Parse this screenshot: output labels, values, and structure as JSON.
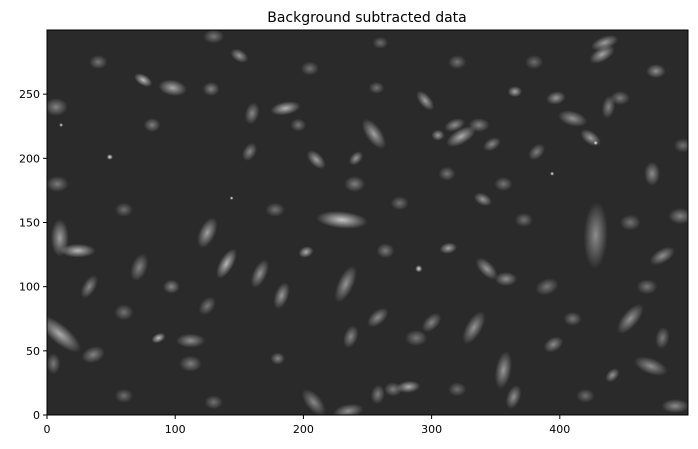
{
  "chart_data": {
    "type": "heatmap",
    "title": "Background subtracted data",
    "xlabel": "",
    "ylabel": "",
    "xlim": [
      0,
      500
    ],
    "ylim": [
      0,
      300
    ],
    "x_ticks": [
      0,
      100,
      200,
      300,
      400
    ],
    "y_ticks": [
      0,
      50,
      100,
      150,
      200,
      250
    ],
    "x_tick_labels": [
      "0",
      "100",
      "200",
      "300",
      "400"
    ],
    "y_tick_labels": [
      "0",
      "50",
      "100",
      "150",
      "200",
      "250"
    ],
    "colormap": "gray",
    "background_color": "#1f1f1f",
    "grid": false,
    "sources": [
      {
        "x": 144,
        "y": 169,
        "size": 1.8,
        "elongation": 1.0,
        "angle": 0,
        "brightness": 1.0
      },
      {
        "x": 394,
        "y": 188,
        "size": 2.0,
        "elongation": 1.0,
        "angle": 0,
        "brightness": 1.0
      },
      {
        "x": 49,
        "y": 201,
        "size": 2.8,
        "elongation": 1.1,
        "angle": 0,
        "brightness": 0.92
      },
      {
        "x": 11,
        "y": 226,
        "size": 2.0,
        "elongation": 1.0,
        "angle": 0,
        "brightness": 0.9
      },
      {
        "x": 428,
        "y": 212,
        "size": 2.1,
        "elongation": 1.0,
        "angle": 0,
        "brightness": 0.95
      },
      {
        "x": 290,
        "y": 114,
        "size": 3.6,
        "elongation": 1.0,
        "angle": 0,
        "brightness": 0.86
      },
      {
        "x": 87,
        "y": 60,
        "size": 4.6,
        "elongation": 1.6,
        "angle": 25,
        "brightness": 0.72
      },
      {
        "x": 24,
        "y": 128,
        "size": 6.8,
        "elongation": 2.6,
        "angle": 0,
        "brightness": 0.68
      },
      {
        "x": 186,
        "y": 239,
        "size": 6.6,
        "elongation": 2.3,
        "angle": 10,
        "brightness": 0.66
      },
      {
        "x": 230,
        "y": 152,
        "size": 8.6,
        "elongation": 3.0,
        "angle": -5,
        "brightness": 0.74
      },
      {
        "x": 282,
        "y": 22,
        "size": 6.0,
        "elongation": 2.0,
        "angle": 5,
        "brightness": 0.62
      },
      {
        "x": 323,
        "y": 217,
        "size": 7.5,
        "elongation": 2.2,
        "angle": 30,
        "brightness": 0.62
      },
      {
        "x": 140,
        "y": 118,
        "size": 7.0,
        "elongation": 2.4,
        "angle": 60,
        "brightness": 0.66
      },
      {
        "x": 75,
        "y": 261,
        "size": 5.5,
        "elongation": 1.8,
        "angle": -30,
        "brightness": 0.7
      },
      {
        "x": 98,
        "y": 255,
        "size": 8.0,
        "elongation": 1.8,
        "angle": -10,
        "brightness": 0.6
      },
      {
        "x": 10,
        "y": 63,
        "size": 9.5,
        "elongation": 2.8,
        "angle": -40,
        "brightness": 0.62
      },
      {
        "x": 10,
        "y": 138,
        "size": 9.0,
        "elongation": 2.1,
        "angle": 90,
        "brightness": 0.56
      },
      {
        "x": 125,
        "y": 142,
        "size": 8.2,
        "elongation": 2.0,
        "angle": 65,
        "brightness": 0.56
      },
      {
        "x": 202,
        "y": 127,
        "size": 5.5,
        "elongation": 1.4,
        "angle": 20,
        "brightness": 0.62
      },
      {
        "x": 210,
        "y": 199,
        "size": 6.5,
        "elongation": 1.8,
        "angle": -45,
        "brightness": 0.56
      },
      {
        "x": 241,
        "y": 200,
        "size": 5.5,
        "elongation": 1.5,
        "angle": 45,
        "brightness": 0.52
      },
      {
        "x": 255,
        "y": 219,
        "size": 8.0,
        "elongation": 2.2,
        "angle": -55,
        "brightness": 0.56
      },
      {
        "x": 295,
        "y": 245,
        "size": 6.0,
        "elongation": 2.0,
        "angle": -50,
        "brightness": 0.56
      },
      {
        "x": 305,
        "y": 218,
        "size": 5.5,
        "elongation": 1.2,
        "angle": 0,
        "brightness": 0.54
      },
      {
        "x": 410,
        "y": 231,
        "size": 7.5,
        "elongation": 2.0,
        "angle": -15,
        "brightness": 0.5
      },
      {
        "x": 365,
        "y": 252,
        "size": 5.5,
        "elongation": 1.3,
        "angle": 0,
        "brightness": 0.6
      },
      {
        "x": 397,
        "y": 247,
        "size": 6.5,
        "elongation": 1.5,
        "angle": 10,
        "brightness": 0.52
      },
      {
        "x": 433,
        "y": 281,
        "size": 7.0,
        "elongation": 2.0,
        "angle": 30,
        "brightness": 0.58
      },
      {
        "x": 435,
        "y": 290,
        "size": 6.5,
        "elongation": 2.2,
        "angle": 20,
        "brightness": 0.55
      },
      {
        "x": 424,
        "y": 216,
        "size": 6.5,
        "elongation": 1.8,
        "angle": -35,
        "brightness": 0.54
      },
      {
        "x": 475,
        "y": 268,
        "size": 7.0,
        "elongation": 1.4,
        "angle": 0,
        "brightness": 0.48
      },
      {
        "x": 472,
        "y": 188,
        "size": 8.0,
        "elongation": 1.5,
        "angle": 90,
        "brightness": 0.46
      },
      {
        "x": 340,
        "y": 168,
        "size": 6.0,
        "elongation": 1.6,
        "angle": -25,
        "brightness": 0.52
      },
      {
        "x": 313,
        "y": 130,
        "size": 5.5,
        "elongation": 1.6,
        "angle": 10,
        "brightness": 0.58
      },
      {
        "x": 343,
        "y": 114,
        "size": 7.0,
        "elongation": 2.0,
        "angle": -45,
        "brightness": 0.52
      },
      {
        "x": 358,
        "y": 106,
        "size": 7.0,
        "elongation": 1.6,
        "angle": 0,
        "brightness": 0.48
      },
      {
        "x": 333,
        "y": 68,
        "size": 8.0,
        "elongation": 2.3,
        "angle": 60,
        "brightness": 0.5
      },
      {
        "x": 356,
        "y": 35,
        "size": 8.0,
        "elongation": 2.4,
        "angle": 80,
        "brightness": 0.52
      },
      {
        "x": 364,
        "y": 14,
        "size": 7.0,
        "elongation": 1.8,
        "angle": 70,
        "brightness": 0.48
      },
      {
        "x": 428,
        "y": 140,
        "size": 12.0,
        "elongation": 2.8,
        "angle": 88,
        "brightness": 0.46
      },
      {
        "x": 395,
        "y": 55,
        "size": 7.0,
        "elongation": 1.5,
        "angle": 30,
        "brightness": 0.46
      },
      {
        "x": 455,
        "y": 75,
        "size": 8.0,
        "elongation": 2.3,
        "angle": 50,
        "brightness": 0.5
      },
      {
        "x": 471,
        "y": 38,
        "size": 8.0,
        "elongation": 2.2,
        "angle": -20,
        "brightness": 0.48
      },
      {
        "x": 441,
        "y": 31,
        "size": 5.5,
        "elongation": 1.5,
        "angle": 45,
        "brightness": 0.5
      },
      {
        "x": 480,
        "y": 124,
        "size": 7.0,
        "elongation": 2.0,
        "angle": 30,
        "brightness": 0.48
      },
      {
        "x": 494,
        "y": 155,
        "size": 8.0,
        "elongation": 1.5,
        "angle": 0,
        "brightness": 0.42
      },
      {
        "x": 490,
        "y": 7,
        "size": 7.0,
        "elongation": 2.0,
        "angle": 0,
        "brightness": 0.46
      },
      {
        "x": 237,
        "y": 61,
        "size": 7.0,
        "elongation": 1.7,
        "angle": 70,
        "brightness": 0.44
      },
      {
        "x": 258,
        "y": 76,
        "size": 7.0,
        "elongation": 1.8,
        "angle": 40,
        "brightness": 0.46
      },
      {
        "x": 233,
        "y": 102,
        "size": 8.0,
        "elongation": 2.5,
        "angle": 65,
        "brightness": 0.5
      },
      {
        "x": 183,
        "y": 93,
        "size": 7.0,
        "elongation": 2.0,
        "angle": 70,
        "brightness": 0.52
      },
      {
        "x": 166,
        "y": 110,
        "size": 7.0,
        "elongation": 2.2,
        "angle": 65,
        "brightness": 0.5
      },
      {
        "x": 112,
        "y": 58,
        "size": 7.0,
        "elongation": 2.1,
        "angle": 0,
        "brightness": 0.48
      },
      {
        "x": 180,
        "y": 44,
        "size": 6.0,
        "elongation": 1.2,
        "angle": 0,
        "brightness": 0.44
      },
      {
        "x": 112,
        "y": 40,
        "size": 8.0,
        "elongation": 1.4,
        "angle": 0,
        "brightness": 0.4
      },
      {
        "x": 36,
        "y": 47,
        "size": 8.0,
        "elongation": 1.5,
        "angle": 20,
        "brightness": 0.42
      },
      {
        "x": 150,
        "y": 280,
        "size": 6.0,
        "elongation": 1.6,
        "angle": -30,
        "brightness": 0.52
      },
      {
        "x": 128,
        "y": 254,
        "size": 7.0,
        "elongation": 1.2,
        "angle": 0,
        "brightness": 0.42
      },
      {
        "x": 160,
        "y": 235,
        "size": 7.0,
        "elongation": 1.6,
        "angle": 75,
        "brightness": 0.44
      },
      {
        "x": 158,
        "y": 205,
        "size": 6.5,
        "elongation": 1.5,
        "angle": 60,
        "brightness": 0.44
      },
      {
        "x": 82,
        "y": 226,
        "size": 7.0,
        "elongation": 1.2,
        "angle": 0,
        "brightness": 0.4
      },
      {
        "x": 7,
        "y": 240,
        "size": 9.0,
        "elongation": 1.3,
        "angle": 0,
        "brightness": 0.42
      },
      {
        "x": 8,
        "y": 180,
        "size": 8.0,
        "elongation": 1.4,
        "angle": 0,
        "brightness": 0.38
      },
      {
        "x": 97,
        "y": 100,
        "size": 7.0,
        "elongation": 1.2,
        "angle": 0,
        "brightness": 0.44
      },
      {
        "x": 72,
        "y": 115,
        "size": 8.0,
        "elongation": 1.8,
        "angle": 70,
        "brightness": 0.42
      },
      {
        "x": 270,
        "y": 20,
        "size": 7.0,
        "elongation": 1.3,
        "angle": 0,
        "brightness": 0.4
      },
      {
        "x": 208,
        "y": 10,
        "size": 8.0,
        "elongation": 2.0,
        "angle": -50,
        "brightness": 0.44
      },
      {
        "x": 235,
        "y": 3,
        "size": 7.0,
        "elongation": 2.2,
        "angle": 10,
        "brightness": 0.48
      },
      {
        "x": 258,
        "y": 16,
        "size": 7.0,
        "elongation": 1.4,
        "angle": 80,
        "brightness": 0.4
      },
      {
        "x": 318,
        "y": 226,
        "size": 6.0,
        "elongation": 1.8,
        "angle": 20,
        "brightness": 0.48
      },
      {
        "x": 337,
        "y": 226,
        "size": 7.0,
        "elongation": 1.5,
        "angle": 0,
        "brightness": 0.42
      },
      {
        "x": 347,
        "y": 211,
        "size": 6.0,
        "elongation": 1.6,
        "angle": 30,
        "brightness": 0.44
      },
      {
        "x": 382,
        "y": 205,
        "size": 6.5,
        "elongation": 1.5,
        "angle": 45,
        "brightness": 0.4
      },
      {
        "x": 438,
        "y": 240,
        "size": 6.5,
        "elongation": 1.8,
        "angle": 80,
        "brightness": 0.42
      },
      {
        "x": 447,
        "y": 247,
        "size": 7.0,
        "elongation": 1.4,
        "angle": 0,
        "brightness": 0.38
      },
      {
        "x": 264,
        "y": 128,
        "size": 7.5,
        "elongation": 1.2,
        "angle": 0,
        "brightness": 0.38
      },
      {
        "x": 312,
        "y": 188,
        "size": 7.0,
        "elongation": 1.2,
        "angle": 0,
        "brightness": 0.36
      },
      {
        "x": 240,
        "y": 180,
        "size": 8.0,
        "elongation": 1.3,
        "angle": 0,
        "brightness": 0.4
      },
      {
        "x": 356,
        "y": 180,
        "size": 7.0,
        "elongation": 1.3,
        "angle": 0,
        "brightness": 0.36
      },
      {
        "x": 288,
        "y": 60,
        "size": 8.0,
        "elongation": 1.4,
        "angle": 0,
        "brightness": 0.36
      },
      {
        "x": 300,
        "y": 72,
        "size": 7.0,
        "elongation": 1.7,
        "angle": 45,
        "brightness": 0.42
      },
      {
        "x": 196,
        "y": 226,
        "size": 6.5,
        "elongation": 1.2,
        "angle": 0,
        "brightness": 0.36
      },
      {
        "x": 60,
        "y": 80,
        "size": 8.0,
        "elongation": 1.2,
        "angle": 0,
        "brightness": 0.34
      },
      {
        "x": 125,
        "y": 85,
        "size": 7.0,
        "elongation": 1.5,
        "angle": 50,
        "brightness": 0.36
      },
      {
        "x": 33,
        "y": 100,
        "size": 6.5,
        "elongation": 2.0,
        "angle": 60,
        "brightness": 0.44
      },
      {
        "x": 390,
        "y": 100,
        "size": 8.0,
        "elongation": 1.5,
        "angle": 20,
        "brightness": 0.36
      },
      {
        "x": 410,
        "y": 75,
        "size": 7.0,
        "elongation": 1.3,
        "angle": 0,
        "brightness": 0.36
      },
      {
        "x": 468,
        "y": 100,
        "size": 7.5,
        "elongation": 1.4,
        "angle": 0,
        "brightness": 0.36
      },
      {
        "x": 480,
        "y": 60,
        "size": 7.0,
        "elongation": 1.6,
        "angle": 80,
        "brightness": 0.38
      },
      {
        "x": 455,
        "y": 150,
        "size": 8.0,
        "elongation": 1.3,
        "angle": 0,
        "brightness": 0.34
      },
      {
        "x": 372,
        "y": 152,
        "size": 7.0,
        "elongation": 1.3,
        "angle": 0,
        "brightness": 0.34
      },
      {
        "x": 275,
        "y": 165,
        "size": 7.0,
        "elongation": 1.3,
        "angle": 0,
        "brightness": 0.34
      },
      {
        "x": 178,
        "y": 160,
        "size": 7.0,
        "elongation": 1.4,
        "angle": 0,
        "brightness": 0.34
      },
      {
        "x": 60,
        "y": 160,
        "size": 7.0,
        "elongation": 1.3,
        "angle": 0,
        "brightness": 0.32
      },
      {
        "x": 40,
        "y": 275,
        "size": 7.0,
        "elongation": 1.3,
        "angle": 0,
        "brightness": 0.36
      },
      {
        "x": 205,
        "y": 270,
        "size": 7.0,
        "elongation": 1.3,
        "angle": 0,
        "brightness": 0.34
      },
      {
        "x": 320,
        "y": 275,
        "size": 7.0,
        "elongation": 1.3,
        "angle": 0,
        "brightness": 0.34
      },
      {
        "x": 257,
        "y": 255,
        "size": 6.0,
        "elongation": 1.3,
        "angle": 0,
        "brightness": 0.34
      },
      {
        "x": 130,
        "y": 10,
        "size": 7.0,
        "elongation": 1.3,
        "angle": 0,
        "brightness": 0.34
      },
      {
        "x": 60,
        "y": 15,
        "size": 7.0,
        "elongation": 1.3,
        "angle": 0,
        "brightness": 0.32
      },
      {
        "x": 320,
        "y": 20,
        "size": 7.0,
        "elongation": 1.3,
        "angle": 0,
        "brightness": 0.32
      },
      {
        "x": 420,
        "y": 15,
        "size": 7.0,
        "elongation": 1.3,
        "angle": 0,
        "brightness": 0.32
      },
      {
        "x": 5,
        "y": 40,
        "size": 7.0,
        "elongation": 1.5,
        "angle": 90,
        "brightness": 0.38
      },
      {
        "x": 496,
        "y": 210,
        "size": 7.0,
        "elongation": 1.3,
        "angle": 0,
        "brightness": 0.34
      },
      {
        "x": 130,
        "y": 295,
        "size": 7.0,
        "elongation": 1.5,
        "angle": 0,
        "brightness": 0.36
      },
      {
        "x": 260,
        "y": 290,
        "size": 6.0,
        "elongation": 1.3,
        "angle": 0,
        "brightness": 0.32
      },
      {
        "x": 380,
        "y": 275,
        "size": 7.0,
        "elongation": 1.3,
        "angle": 0,
        "brightness": 0.32
      }
    ]
  }
}
